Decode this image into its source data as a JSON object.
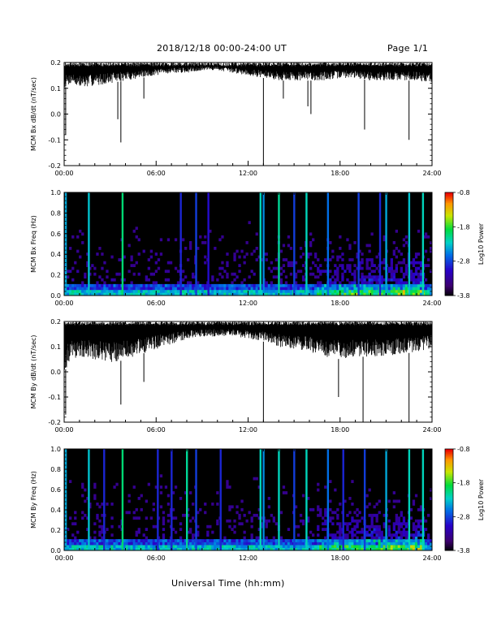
{
  "header": {
    "title": "2018/12/18   00:00-24:00 UT",
    "page": "Page 1/1"
  },
  "xaxis_label": "Universal Time (hh:mm)",
  "chart_data": [
    {
      "type": "line",
      "ylabel": "MCM Bx dB/dt (nT/sec)",
      "xlabel": "",
      "x_ticks": [
        "00:00",
        "06:00",
        "12:00",
        "18:00",
        "24:00"
      ],
      "xlim": [
        0,
        24
      ],
      "ylim": [
        -0.2,
        0.2
      ],
      "y_ticks": [
        "0.2",
        "0.1",
        "0.0",
        "-0.1",
        "-0.2"
      ],
      "series": [
        {
          "x": [
            0,
            0.5,
            1,
            2,
            3,
            4,
            5,
            6,
            7,
            8,
            9,
            10,
            11,
            12,
            13,
            14,
            15,
            16,
            17,
            18,
            19,
            20,
            21,
            22,
            23,
            24
          ],
          "upper": [
            0.2,
            0.2,
            0.2,
            0.2,
            0.2,
            0.2,
            0.2,
            0.2,
            0.2,
            0.2,
            0.2,
            0.2,
            0.2,
            0.2,
            0.2,
            0.2,
            0.2,
            0.2,
            0.2,
            0.2,
            0.2,
            0.2,
            0.2,
            0.2,
            0.2,
            0.2
          ],
          "lower": [
            0.1,
            0.12,
            0.1,
            0.11,
            0.12,
            0.13,
            0.14,
            0.15,
            0.16,
            0.16,
            0.17,
            0.17,
            0.16,
            0.15,
            0.14,
            0.13,
            0.13,
            0.13,
            0.13,
            0.14,
            0.14,
            0.13,
            0.13,
            0.13,
            0.13,
            0.12
          ]
        }
      ],
      "spikes": [
        {
          "x": 0.1,
          "y": -0.08
        },
        {
          "x": 3.5,
          "y": -0.02
        },
        {
          "x": 3.7,
          "y": -0.11
        },
        {
          "x": 5.2,
          "y": 0.06
        },
        {
          "x": 13.0,
          "y": -0.2
        },
        {
          "x": 14.3,
          "y": 0.06
        },
        {
          "x": 15.9,
          "y": 0.03
        },
        {
          "x": 16.1,
          "y": 0.0
        },
        {
          "x": 19.6,
          "y": -0.06
        },
        {
          "x": 22.5,
          "y": -0.1
        }
      ]
    },
    {
      "type": "heatmap",
      "ylabel": "MCM Bx Freq (Hz)",
      "x_ticks": [
        "00:00",
        "06:00",
        "12:00",
        "18:00",
        "24:00"
      ],
      "xlim": [
        0,
        24
      ],
      "ylim": [
        0,
        1.0
      ],
      "y_ticks": [
        "1.0",
        "0.8",
        "0.6",
        "0.4",
        "0.2",
        "0.0"
      ],
      "colorbar": {
        "label": "Log10 Power",
        "ticks": [
          "-0.8",
          "-1.8",
          "-2.8",
          "-3.8"
        ],
        "range": [
          -3.8,
          -0.8
        ]
      },
      "vertical_bands": [
        {
          "x": 0.1,
          "level": -2.4
        },
        {
          "x": 1.6,
          "level": -2.3
        },
        {
          "x": 3.8,
          "level": -2.0
        },
        {
          "x": 7.6,
          "level": -2.9
        },
        {
          "x": 8.6,
          "level": -2.8
        },
        {
          "x": 9.4,
          "level": -3.0
        },
        {
          "x": 12.8,
          "level": -2.2
        },
        {
          "x": 13.0,
          "level": -2.5
        },
        {
          "x": 14.0,
          "level": -2.1
        },
        {
          "x": 15.0,
          "level": -2.8
        },
        {
          "x": 15.8,
          "level": -2.2
        },
        {
          "x": 17.2,
          "level": -2.6
        },
        {
          "x": 19.2,
          "level": -2.8
        },
        {
          "x": 20.6,
          "level": -2.9
        },
        {
          "x": 21.0,
          "level": -2.4
        },
        {
          "x": 22.5,
          "level": -2.3
        },
        {
          "x": 23.4,
          "level": -2.2
        }
      ],
      "enhanced_region": {
        "x_range": [
          16.5,
          23.5
        ],
        "freq_range": [
          0.0,
          0.45
        ],
        "level": -2.8
      }
    },
    {
      "type": "line",
      "ylabel": "MCM By dB/dt (nT/sec)",
      "xlabel": "",
      "x_ticks": [
        "00:00",
        "06:00",
        "12:00",
        "18:00",
        "24:00"
      ],
      "xlim": [
        0,
        24
      ],
      "ylim": [
        -0.2,
        0.2
      ],
      "y_ticks": [
        "0.2",
        "0.1",
        "0.0",
        "-0.1",
        "-0.2"
      ],
      "series": [
        {
          "x": [
            0,
            0.5,
            1,
            2,
            3,
            4,
            5,
            6,
            7,
            8,
            9,
            10,
            11,
            12,
            13,
            14,
            15,
            16,
            17,
            18,
            19,
            20,
            21,
            22,
            23,
            24
          ],
          "upper": [
            0.2,
            0.2,
            0.2,
            0.2,
            0.2,
            0.2,
            0.2,
            0.2,
            0.2,
            0.2,
            0.2,
            0.2,
            0.2,
            0.2,
            0.2,
            0.2,
            0.2,
            0.2,
            0.2,
            0.2,
            0.2,
            0.2,
            0.2,
            0.2,
            0.2,
            0.2
          ],
          "lower": [
            0.0,
            0.05,
            0.06,
            0.05,
            0.03,
            0.05,
            0.07,
            0.09,
            0.11,
            0.13,
            0.14,
            0.14,
            0.14,
            0.13,
            0.12,
            0.1,
            0.09,
            0.08,
            0.06,
            0.05,
            0.06,
            0.06,
            0.06,
            0.07,
            0.08,
            0.09
          ]
        }
      ],
      "spikes": [
        {
          "x": 0.1,
          "y": -0.17
        },
        {
          "x": 3.7,
          "y": -0.13
        },
        {
          "x": 5.2,
          "y": -0.04
        },
        {
          "x": 13.0,
          "y": -0.2
        },
        {
          "x": 17.9,
          "y": -0.1
        },
        {
          "x": 19.5,
          "y": -0.2
        },
        {
          "x": 22.5,
          "y": -0.2
        }
      ]
    },
    {
      "type": "heatmap",
      "ylabel": "MCM By Freq (Hz)",
      "x_ticks": [
        "00:00",
        "06:00",
        "12:00",
        "18:00",
        "24:00"
      ],
      "xlim": [
        0,
        24
      ],
      "ylim": [
        0,
        1.0
      ],
      "y_ticks": [
        "1.0",
        "0.8",
        "0.6",
        "0.4",
        "0.2",
        "0.0"
      ],
      "colorbar": {
        "label": "Log10 Power",
        "ticks": [
          "-0.8",
          "-1.8",
          "-2.8",
          "-3.8"
        ],
        "range": [
          -3.8,
          -0.8
        ]
      },
      "vertical_bands": [
        {
          "x": 0.1,
          "level": -2.4
        },
        {
          "x": 1.6,
          "level": -2.3
        },
        {
          "x": 2.6,
          "level": -2.9
        },
        {
          "x": 3.8,
          "level": -2.0
        },
        {
          "x": 6.1,
          "level": -2.9
        },
        {
          "x": 7.0,
          "level": -2.9
        },
        {
          "x": 8.0,
          "level": -2.1
        },
        {
          "x": 8.6,
          "level": -2.8
        },
        {
          "x": 10.2,
          "level": -2.9
        },
        {
          "x": 12.8,
          "level": -2.2
        },
        {
          "x": 13.0,
          "level": -2.5
        },
        {
          "x": 14.0,
          "level": -2.2
        },
        {
          "x": 15.0,
          "level": -2.8
        },
        {
          "x": 15.8,
          "level": -2.2
        },
        {
          "x": 17.2,
          "level": -2.6
        },
        {
          "x": 18.2,
          "level": -2.9
        },
        {
          "x": 19.6,
          "level": -2.8
        },
        {
          "x": 21.0,
          "level": -2.4
        },
        {
          "x": 22.5,
          "level": -2.2
        },
        {
          "x": 23.4,
          "level": -2.2
        }
      ],
      "enhanced_region": {
        "x_range": [
          16.5,
          23.5
        ],
        "freq_range": [
          0.0,
          0.45
        ],
        "level": -2.8
      }
    }
  ]
}
